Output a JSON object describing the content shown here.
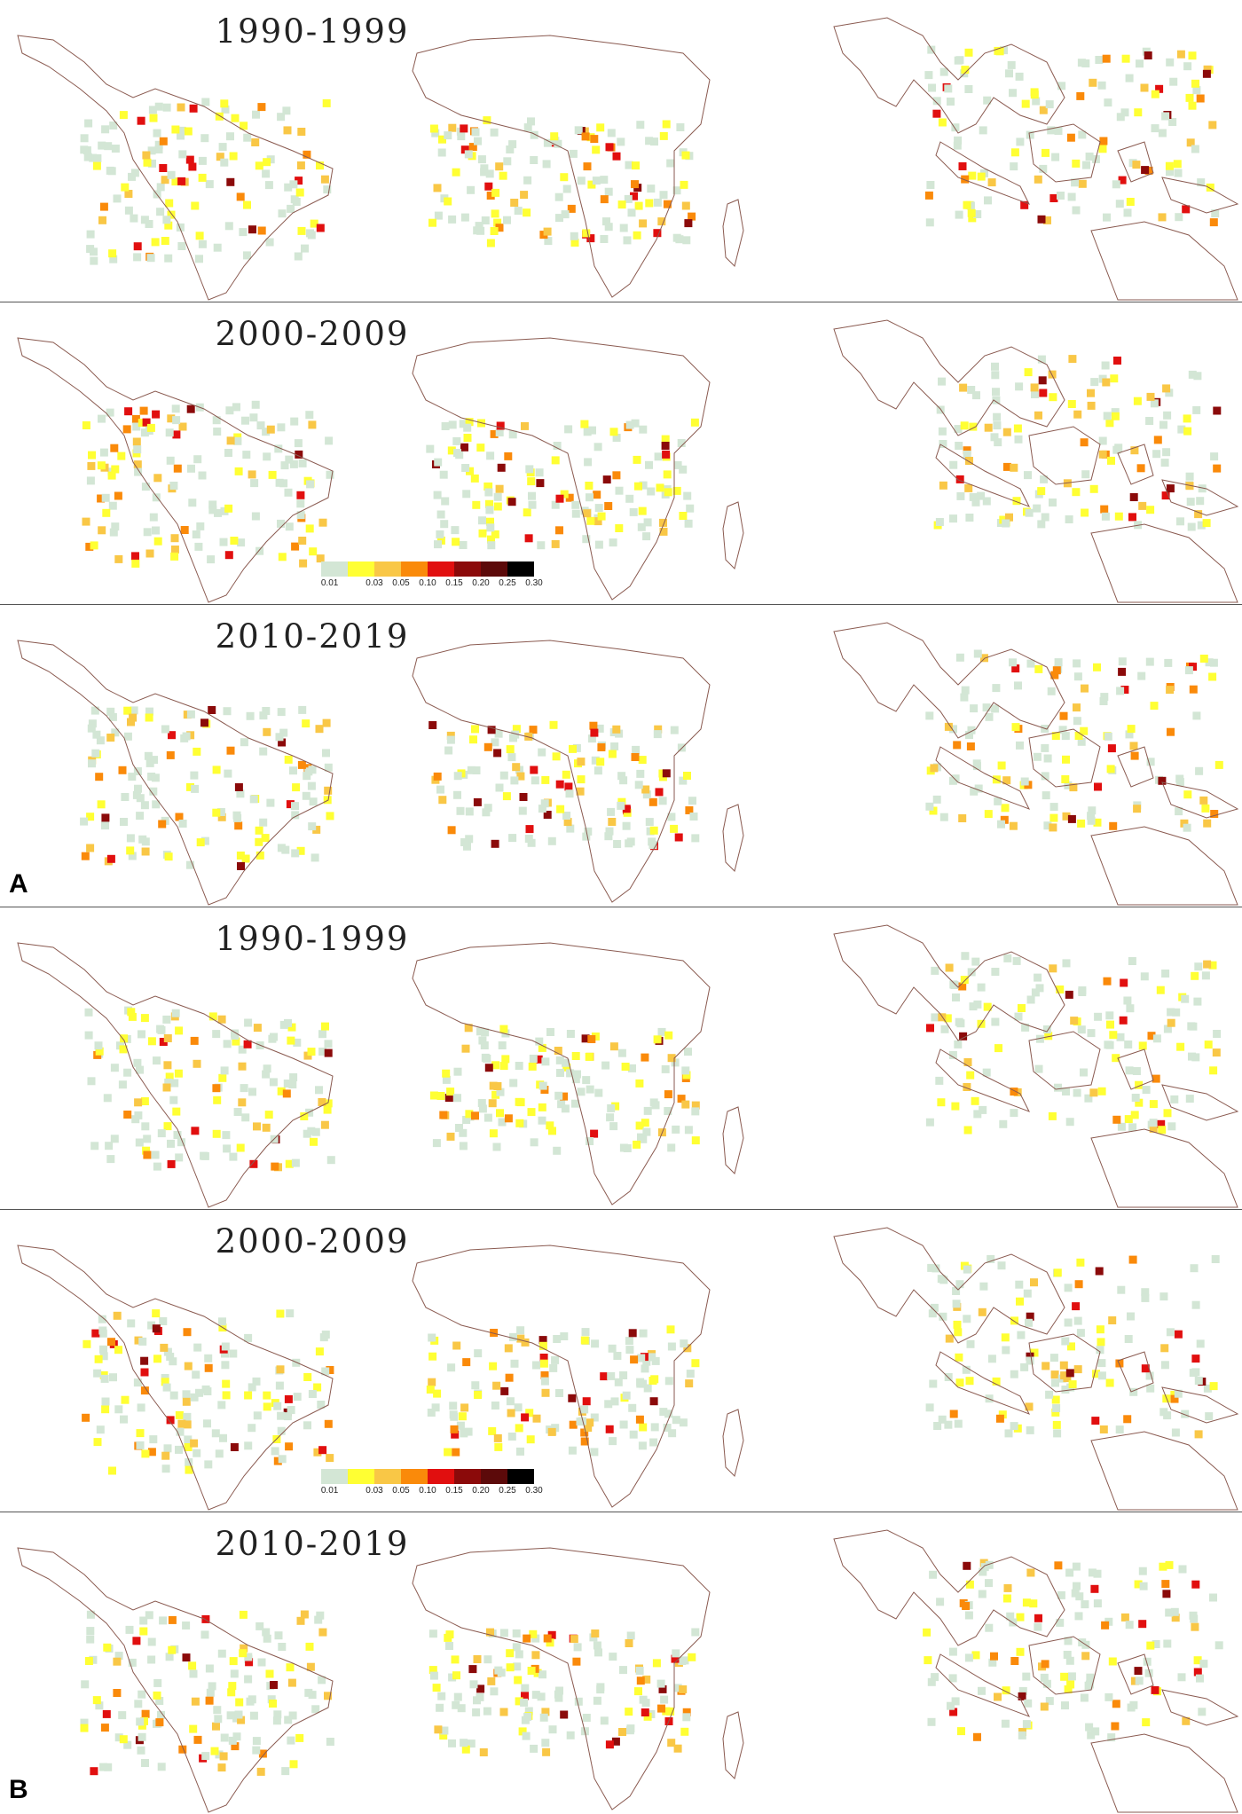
{
  "figure": {
    "part_labels": [
      "A",
      "B"
    ],
    "panels": [
      {
        "part": "A",
        "title": "1990-1999",
        "legend": false
      },
      {
        "part": "A",
        "title": "2000-2009",
        "legend": true
      },
      {
        "part": "A",
        "title": "2010-2019",
        "legend": false
      },
      {
        "part": "B",
        "title": "1990-1999",
        "legend": false
      },
      {
        "part": "B",
        "title": "2000-2009",
        "legend": true
      },
      {
        "part": "B",
        "title": "2010-2019",
        "legend": false
      }
    ]
  },
  "legend": {
    "ticks": [
      "0.01",
      "0.03",
      "0.05",
      "0.10",
      "0.15",
      "0.20",
      "0.25",
      "0.30"
    ],
    "colors": [
      "#d3e6d5",
      "#ffff33",
      "#f9c746",
      "#fa8a0a",
      "#e10f0f",
      "#8b0a0a",
      "#5c0a0a",
      "#000000"
    ]
  },
  "colors": {
    "border": "#8a5a50",
    "land_background": "#ffffff",
    "panel_separator": "#555555"
  },
  "regions": [
    "Central & South America",
    "Africa",
    "South & Southeast Asia"
  ]
}
